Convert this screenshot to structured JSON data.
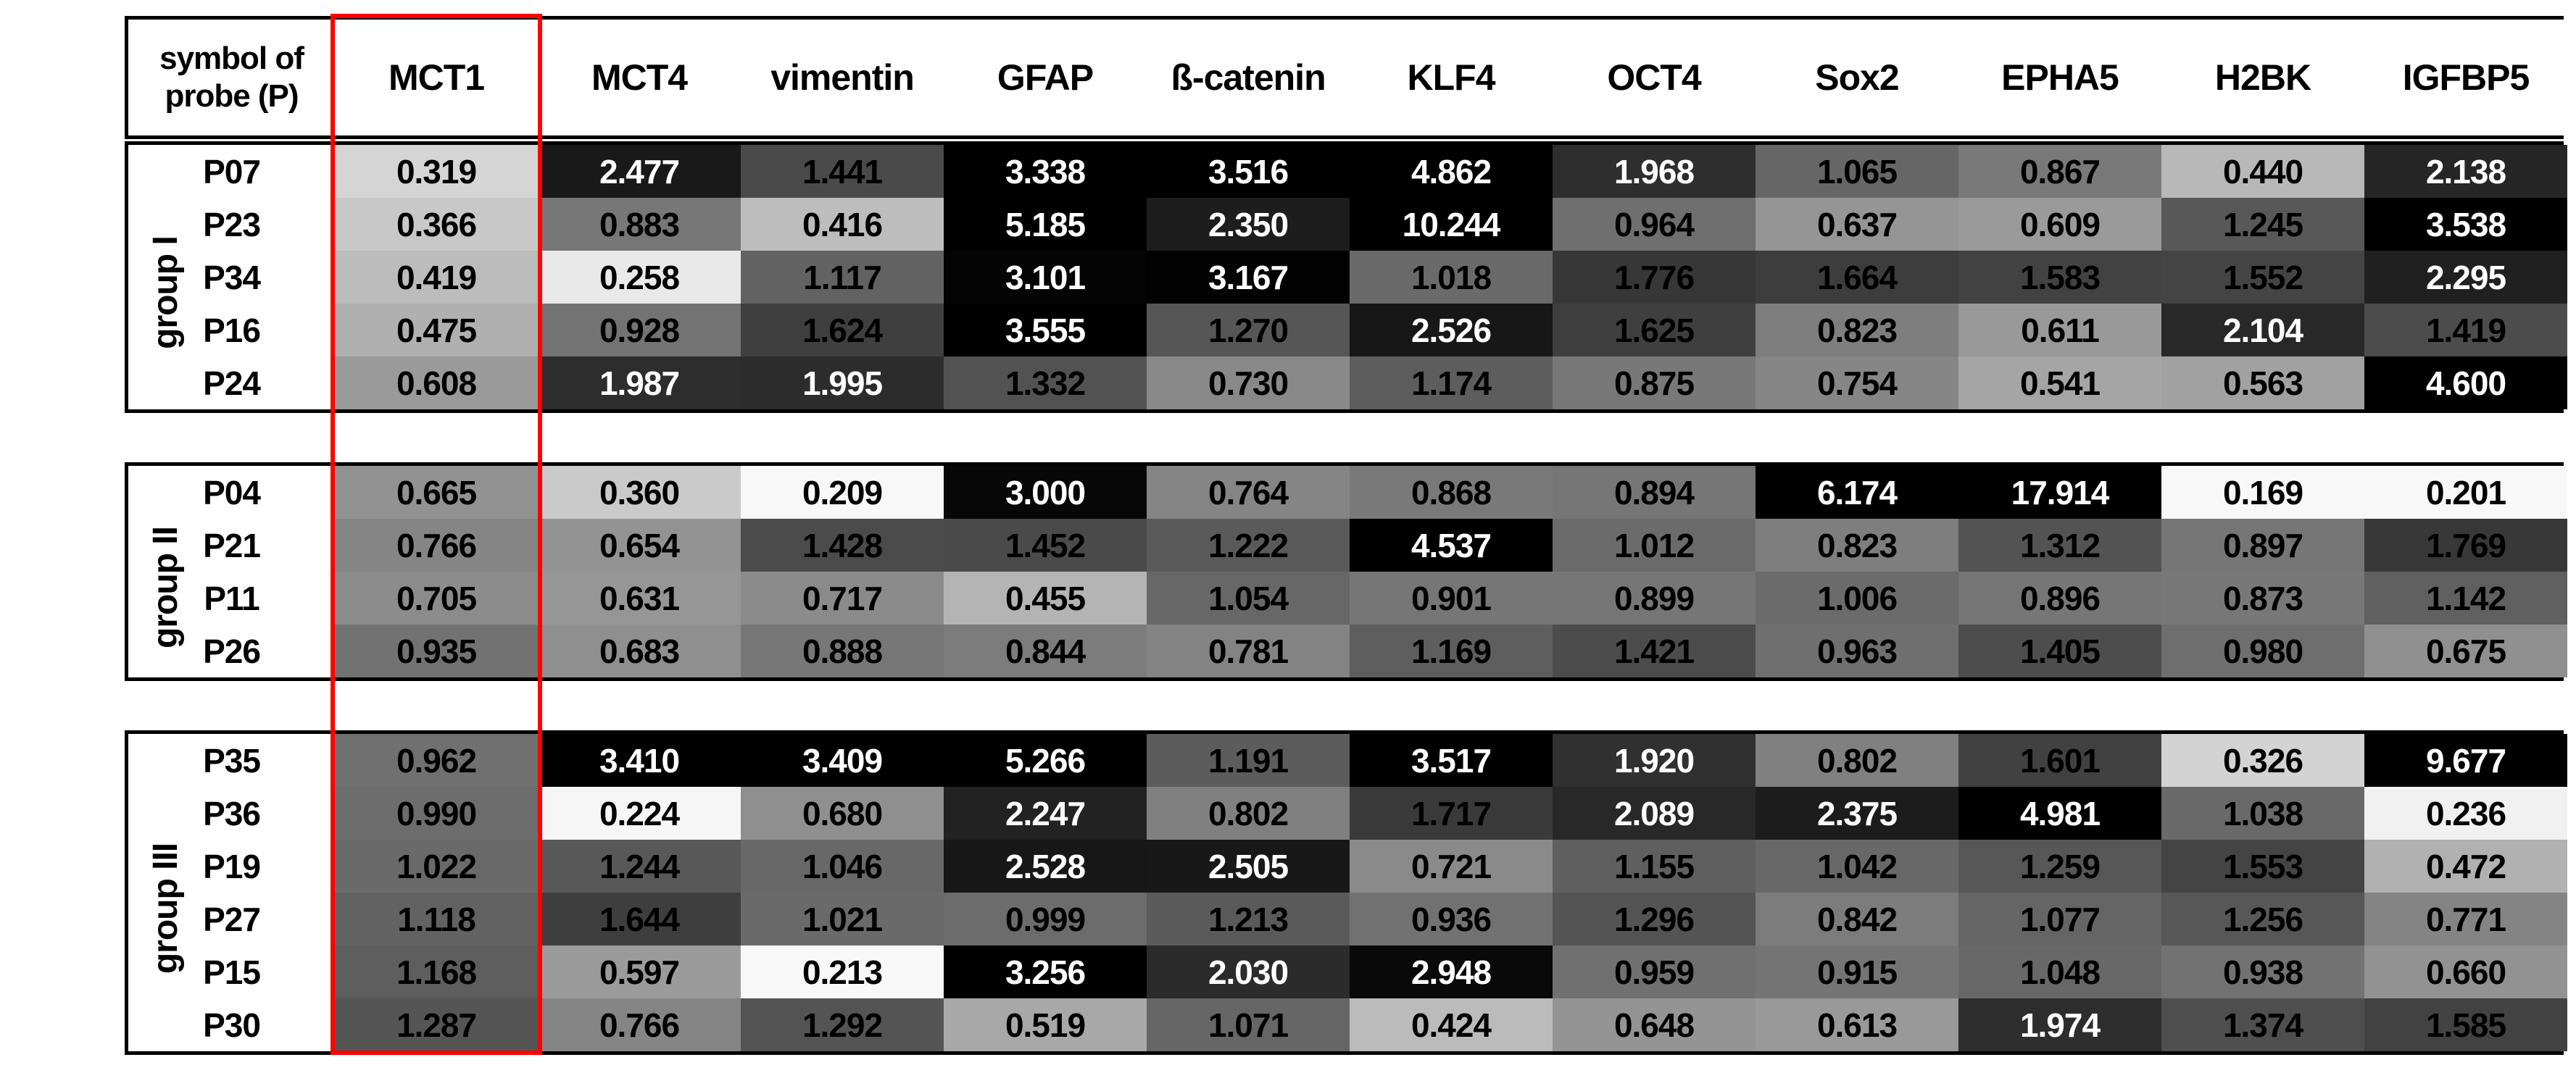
{
  "table": {
    "header": {
      "probe_col_lines": [
        "symbol of",
        "probe (P)"
      ],
      "genes": [
        "MCT1",
        "MCT4",
        "vimentin",
        "GFAP",
        "ß-catenin",
        "KLF4",
        "OCT4",
        "Sox2",
        "EPHA5",
        "H2BK",
        "IGFBP5"
      ]
    },
    "highlight": {
      "column": "MCT1",
      "color": "#ff0000"
    },
    "groups": [
      {
        "label": "group I",
        "probes": [
          {
            "id": "P07",
            "values": [
              "0.319",
              "2.477",
              "1.441",
              "3.338",
              "3.516",
              "4.862",
              "1.968",
              "1.065",
              "0.867",
              "0.440",
              "2.138"
            ]
          },
          {
            "id": "P23",
            "values": [
              "0.366",
              "0.883",
              "0.416",
              "5.185",
              "2.350",
              "10.244",
              "0.964",
              "0.637",
              "0.609",
              "1.245",
              "3.538"
            ]
          },
          {
            "id": "P34",
            "values": [
              "0.419",
              "0.258",
              "1.117",
              "3.101",
              "3.167",
              "1.018",
              "1.776",
              "1.664",
              "1.583",
              "1.552",
              "2.295"
            ]
          },
          {
            "id": "P16",
            "values": [
              "0.475",
              "0.928",
              "1.624",
              "3.555",
              "1.270",
              "2.526",
              "1.625",
              "0.823",
              "0.611",
              "2.104",
              "1.419"
            ]
          },
          {
            "id": "P24",
            "values": [
              "0.608",
              "1.987",
              "1.995",
              "1.332",
              "0.730",
              "1.174",
              "0.875",
              "0.754",
              "0.541",
              "0.563",
              "4.600"
            ]
          }
        ]
      },
      {
        "label": "group II",
        "probes": [
          {
            "id": "P04",
            "values": [
              "0.665",
              "0.360",
              "0.209",
              "3.000",
              "0.764",
              "0.868",
              "0.894",
              "6.174",
              "17.914",
              "0.169",
              "0.201"
            ]
          },
          {
            "id": "P21",
            "values": [
              "0.766",
              "0.654",
              "1.428",
              "1.452",
              "1.222",
              "4.537",
              "1.012",
              "0.823",
              "1.312",
              "0.897",
              "1.769"
            ]
          },
          {
            "id": "P11",
            "values": [
              "0.705",
              "0.631",
              "0.717",
              "0.455",
              "1.054",
              "0.901",
              "0.899",
              "1.006",
              "0.896",
              "0.873",
              "1.142"
            ]
          },
          {
            "id": "P26",
            "values": [
              "0.935",
              "0.683",
              "0.888",
              "0.844",
              "0.781",
              "1.169",
              "1.421",
              "0.963",
              "1.405",
              "0.980",
              "0.675"
            ]
          }
        ]
      },
      {
        "label": "group III",
        "probes": [
          {
            "id": "P35",
            "values": [
              "0.962",
              "3.410",
              "3.409",
              "5.266",
              "1.191",
              "3.517",
              "1.920",
              "0.802",
              "1.601",
              "0.326",
              "9.677"
            ]
          },
          {
            "id": "P36",
            "values": [
              "0.990",
              "0.224",
              "0.680",
              "2.247",
              "0.802",
              "1.717",
              "2.089",
              "2.375",
              "4.981",
              "1.038",
              "0.236"
            ]
          },
          {
            "id": "P19",
            "values": [
              "1.022",
              "1.244",
              "1.046",
              "2.528",
              "2.505",
              "0.721",
              "1.155",
              "1.042",
              "1.259",
              "1.553",
              "0.472"
            ]
          },
          {
            "id": "P27",
            "values": [
              "1.118",
              "1.644",
              "1.021",
              "0.999",
              "1.213",
              "0.936",
              "1.296",
              "0.842",
              "1.077",
              "1.256",
              "0.771"
            ]
          },
          {
            "id": "P15",
            "values": [
              "1.168",
              "0.597",
              "0.213",
              "3.256",
              "2.030",
              "2.948",
              "0.959",
              "0.915",
              "1.048",
              "0.938",
              "0.660"
            ]
          },
          {
            "id": "P30",
            "values": [
              "1.287",
              "0.766",
              "1.292",
              "0.519",
              "1.071",
              "0.424",
              "0.648",
              "0.613",
              "1.974",
              "1.374",
              "1.585"
            ]
          }
        ]
      }
    ]
  },
  "chart_data": {
    "type": "heatmap",
    "columns": [
      "MCT1",
      "MCT4",
      "vimentin",
      "GFAP",
      "ß-catenin",
      "KLF4",
      "OCT4",
      "Sox2",
      "EPHA5",
      "H2BK",
      "IGFBP5"
    ],
    "rows": [
      "P07",
      "P23",
      "P34",
      "P16",
      "P24",
      "P04",
      "P21",
      "P11",
      "P26",
      "P35",
      "P36",
      "P19",
      "P27",
      "P15",
      "P30"
    ],
    "row_groups": [
      {
        "label": "group I",
        "rows": [
          "P07",
          "P23",
          "P34",
          "P16",
          "P24"
        ]
      },
      {
        "label": "group II",
        "rows": [
          "P04",
          "P21",
          "P11",
          "P26"
        ]
      },
      {
        "label": "group III",
        "rows": [
          "P35",
          "P36",
          "P19",
          "P27",
          "P15",
          "P30"
        ]
      }
    ],
    "matrix": [
      [
        0.319,
        2.477,
        1.441,
        3.338,
        3.516,
        4.862,
        1.968,
        1.065,
        0.867,
        0.44,
        2.138
      ],
      [
        0.366,
        0.883,
        0.416,
        5.185,
        2.35,
        10.244,
        0.964,
        0.637,
        0.609,
        1.245,
        3.538
      ],
      [
        0.419,
        0.258,
        1.117,
        3.101,
        3.167,
        1.018,
        1.776,
        1.664,
        1.583,
        1.552,
        2.295
      ],
      [
        0.475,
        0.928,
        1.624,
        3.555,
        1.27,
        2.526,
        1.625,
        0.823,
        0.611,
        2.104,
        1.419
      ],
      [
        0.608,
        1.987,
        1.995,
        1.332,
        0.73,
        1.174,
        0.875,
        0.754,
        0.541,
        0.563,
        4.6
      ],
      [
        0.665,
        0.36,
        0.209,
        3.0,
        0.764,
        0.868,
        0.894,
        6.174,
        17.914,
        0.169,
        0.201
      ],
      [
        0.766,
        0.654,
        1.428,
        1.452,
        1.222,
        4.537,
        1.012,
        0.823,
        1.312,
        0.897,
        1.769
      ],
      [
        0.705,
        0.631,
        0.717,
        0.455,
        1.054,
        0.901,
        0.899,
        1.006,
        0.896,
        0.873,
        1.142
      ],
      [
        0.935,
        0.683,
        0.888,
        0.844,
        0.781,
        1.169,
        1.421,
        0.963,
        1.405,
        0.98,
        0.675
      ],
      [
        0.962,
        3.41,
        3.409,
        5.266,
        1.191,
        3.517,
        1.92,
        0.802,
        1.601,
        0.326,
        9.677
      ],
      [
        0.99,
        0.224,
        0.68,
        2.247,
        0.802,
        1.717,
        2.089,
        2.375,
        4.981,
        1.038,
        0.236
      ],
      [
        1.022,
        1.244,
        1.046,
        2.528,
        2.505,
        0.721,
        1.155,
        1.042,
        1.259,
        1.553,
        0.472
      ],
      [
        1.118,
        1.644,
        1.021,
        0.999,
        1.213,
        0.936,
        1.296,
        0.842,
        1.077,
        1.256,
        0.771
      ],
      [
        1.168,
        0.597,
        0.213,
        3.256,
        2.03,
        2.948,
        0.959,
        0.915,
        1.048,
        0.938,
        0.66
      ],
      [
        1.287,
        0.766,
        1.292,
        0.519,
        1.071,
        0.424,
        0.648,
        0.613,
        1.974,
        1.374,
        1.585
      ]
    ],
    "corner_label": "symbol of probe (P)",
    "color_scale": {
      "low_value_color": "#ffffff",
      "high_value_color": "#000000"
    },
    "highlighted_column": "MCT1",
    "highlight_color": "#ff0000",
    "legend_position": "none",
    "grid": false
  }
}
